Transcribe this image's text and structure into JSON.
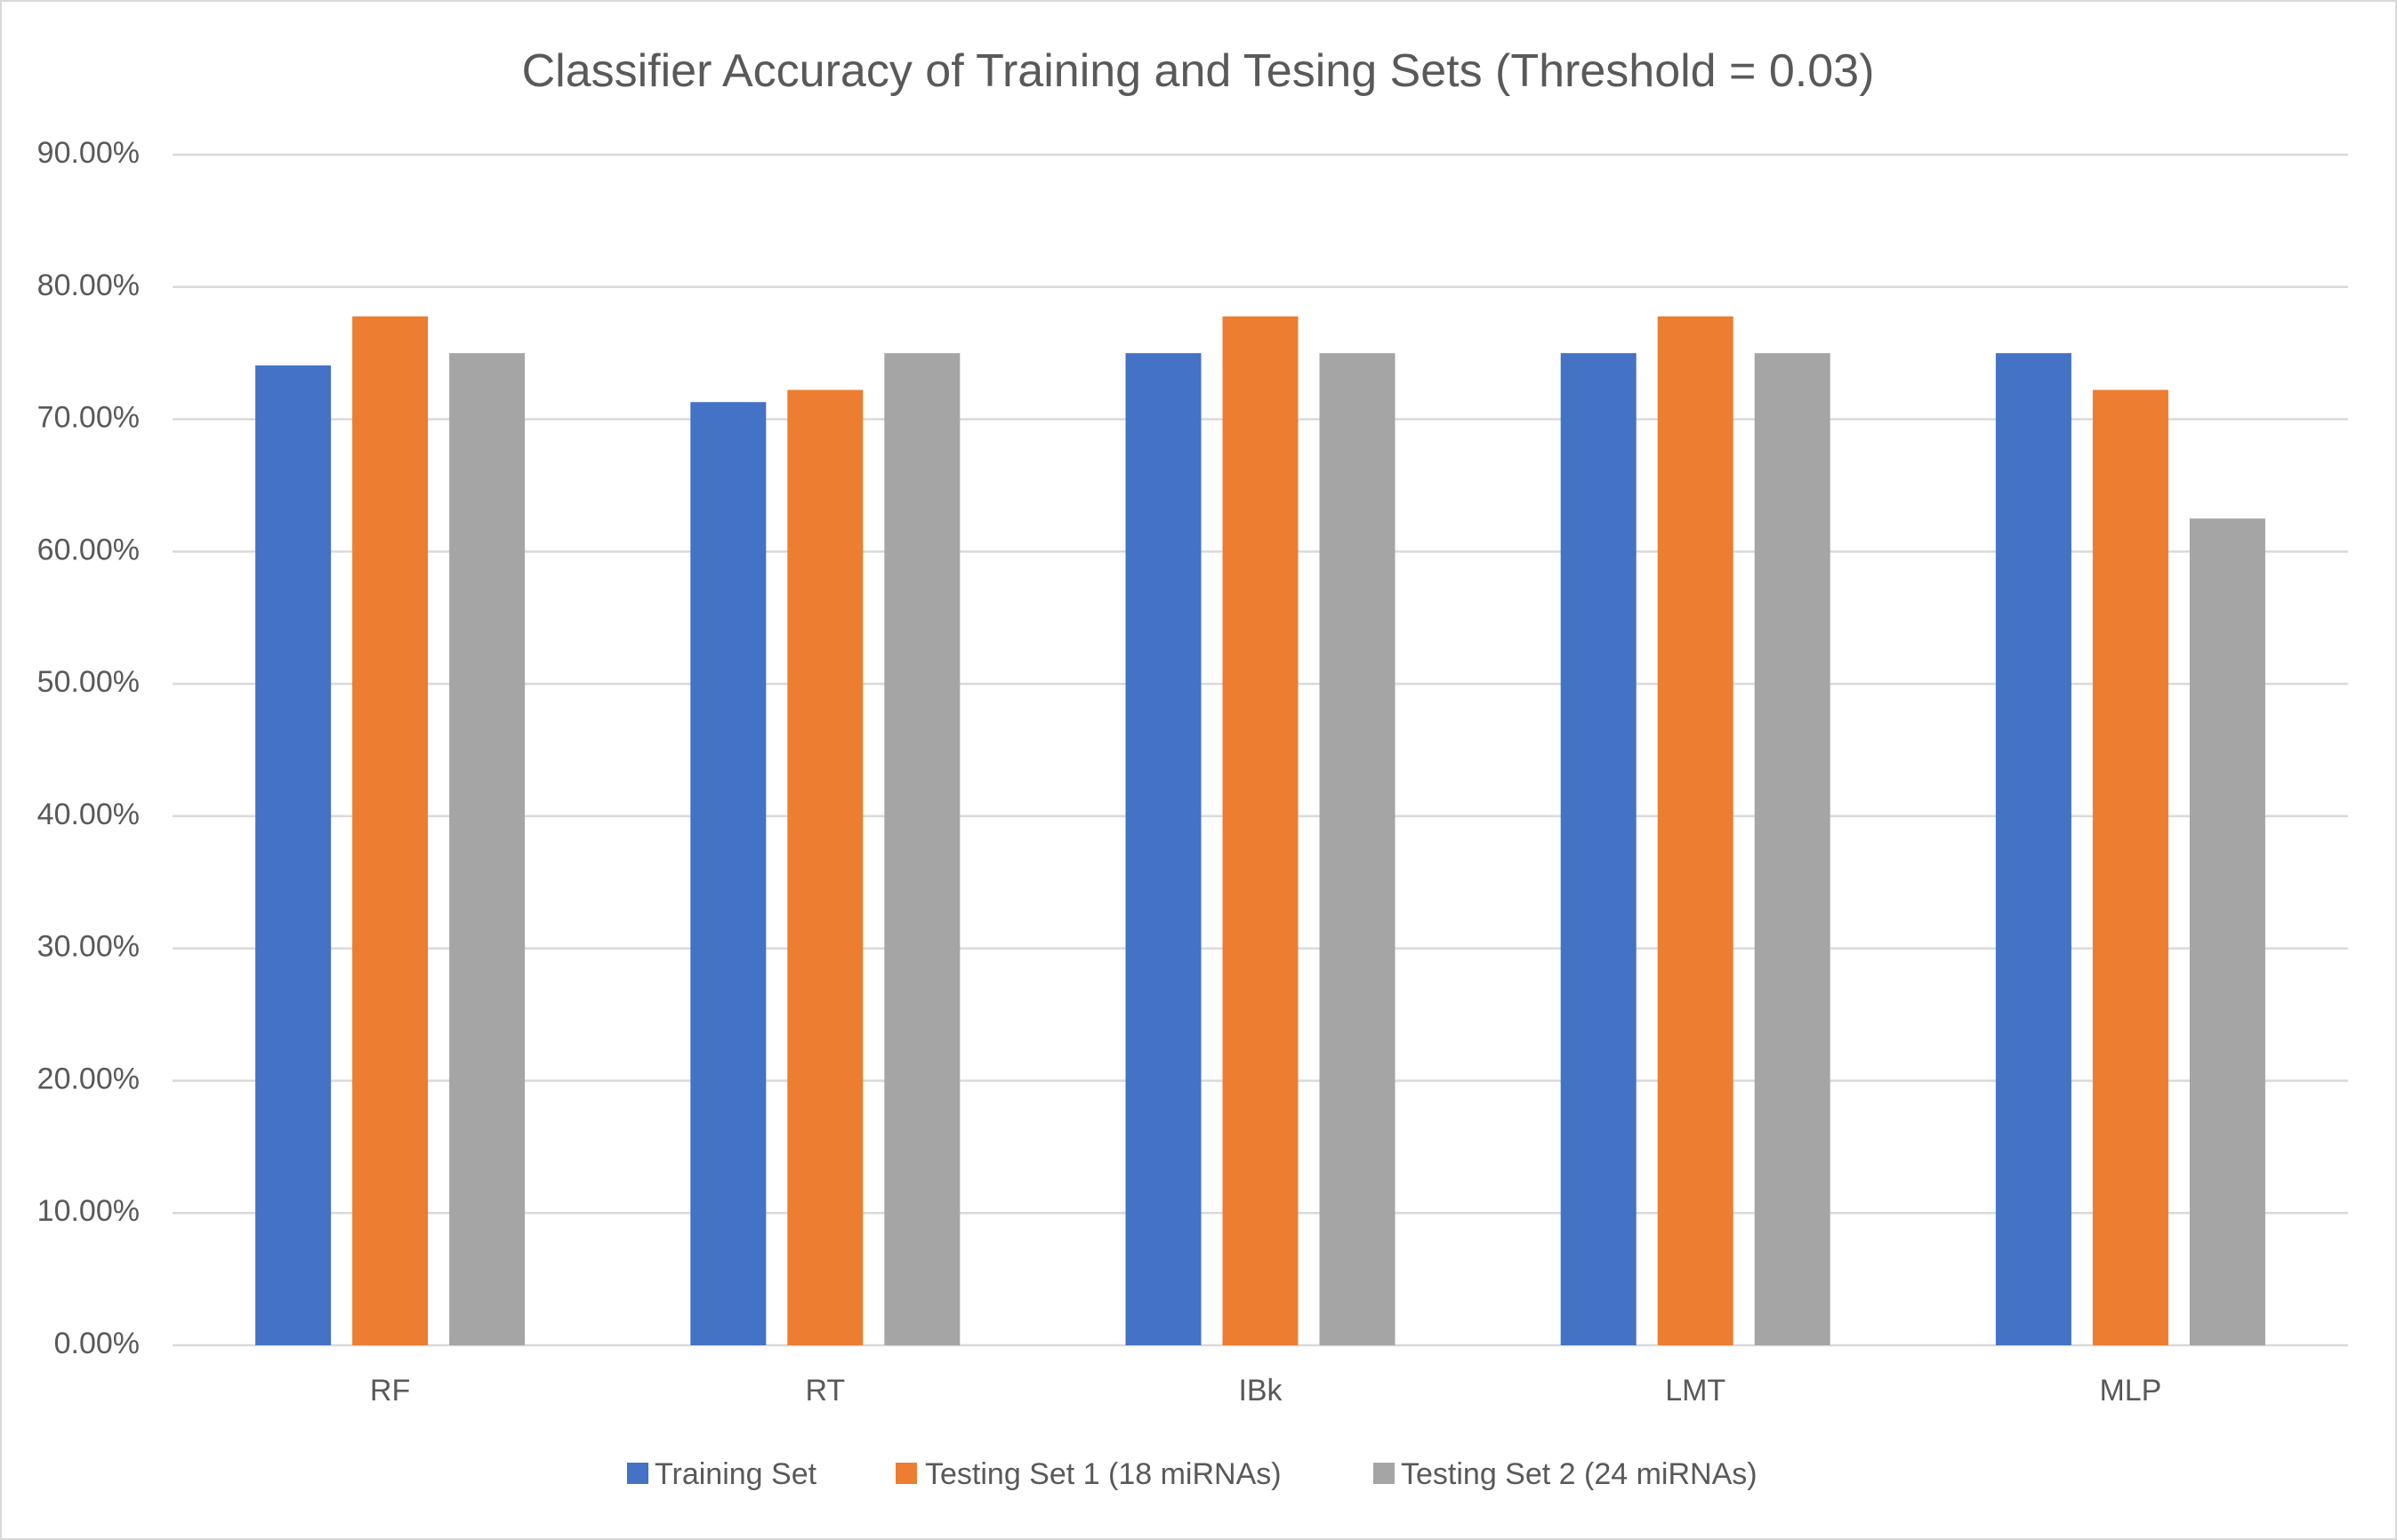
{
  "chart_data": {
    "type": "bar",
    "title": "Classifier Accuracy of Training and Tesing Sets (Threshold = 0.03)",
    "xlabel": "",
    "ylabel": "",
    "categories": [
      "RF",
      "RT",
      "IBk",
      "LMT",
      "MLP"
    ],
    "series": [
      {
        "name": "Training Set",
        "color": "#4472C4",
        "values": [
          74.07,
          71.3,
          75.0,
          75.0,
          75.0
        ]
      },
      {
        "name": "Testing Set 1 (18 miRNAs)",
        "color": "#ED7D31",
        "values": [
          77.78,
          72.22,
          77.78,
          77.78,
          72.22
        ]
      },
      {
        "name": "Testing Set 2 (24 miRNAs)",
        "color": "#A5A5A5",
        "values": [
          75.0,
          75.0,
          75.0,
          75.0,
          62.5
        ]
      }
    ],
    "unit": "%",
    "ylim": [
      0,
      90
    ],
    "yticks": [
      0,
      10,
      20,
      30,
      40,
      50,
      60,
      70,
      80,
      90
    ],
    "ytick_labels": [
      "0.00%",
      "10.00%",
      "20.00%",
      "30.00%",
      "40.00%",
      "50.00%",
      "60.00%",
      "70.00%",
      "80.00%",
      "90.00%"
    ],
    "grid": true,
    "legend": "bottom-center",
    "colors": {
      "text": "#595959",
      "grid": "#D9D9D9",
      "border": "#D9D9D9"
    }
  }
}
